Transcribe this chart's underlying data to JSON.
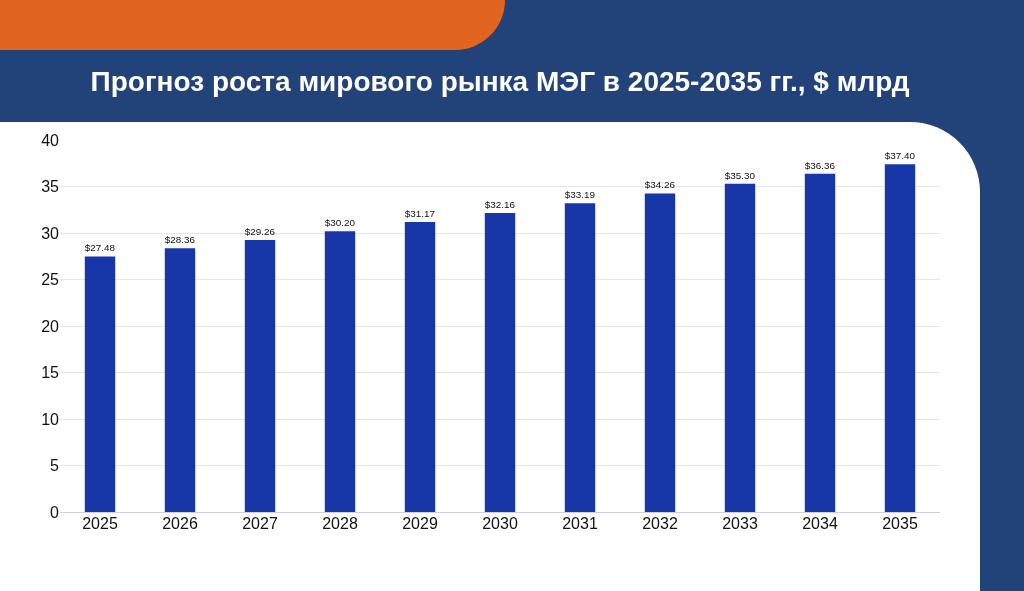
{
  "chart_data": {
    "type": "bar",
    "title": "Прогноз роста мирового рынка МЭГ в 2025-2035 гг., $ млрд",
    "categories": [
      "2025",
      "2026",
      "2027",
      "2028",
      "2029",
      "2030",
      "2031",
      "2032",
      "2033",
      "2034",
      "2035"
    ],
    "values": [
      27.48,
      28.36,
      29.26,
      30.2,
      31.17,
      32.16,
      33.19,
      34.26,
      35.3,
      36.36,
      37.4
    ],
    "value_labels": [
      "$27.48",
      "$28.36",
      "$29.26",
      "$30.20",
      "$31.17",
      "$32.16",
      "$33.19",
      "$34.26",
      "$35.30",
      "$36.36",
      "$37.40"
    ],
    "color": "#1737a8",
    "ylim": [
      0,
      40
    ],
    "yticks": [
      0,
      5,
      10,
      15,
      20,
      25,
      30,
      35,
      40
    ],
    "grid": "y"
  }
}
